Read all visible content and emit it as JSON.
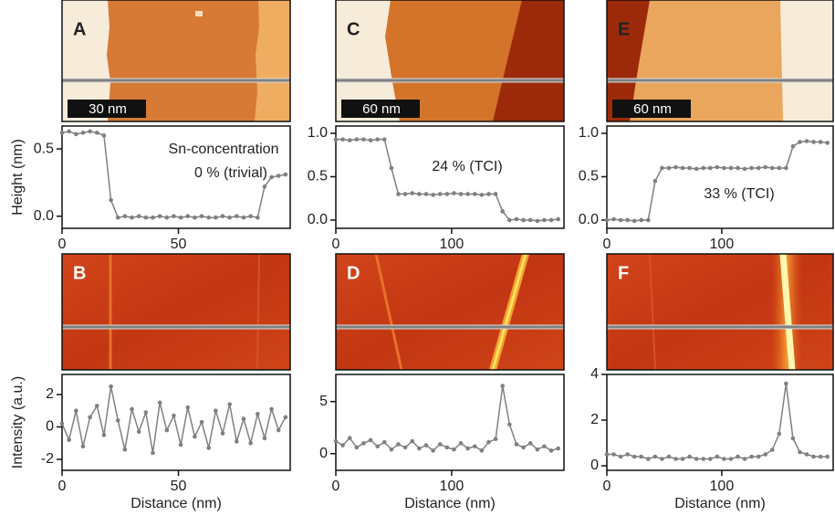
{
  "images": [
    {
      "label": "A",
      "scale_bar": "30 nm"
    },
    {
      "label": "C",
      "scale_bar": "60 nm"
    },
    {
      "label": "E",
      "scale_bar": "60 nm"
    },
    {
      "label": "B"
    },
    {
      "label": "D"
    },
    {
      "label": "F"
    }
  ],
  "chart_data": [
    {
      "type": "line",
      "ylabel": "Height (nm)",
      "annotations": [
        "Sn-concentration",
        "0 % (trivial)"
      ],
      "color": "#808080",
      "x": [
        0,
        3,
        6,
        9,
        12,
        15,
        18,
        21,
        24,
        27,
        30,
        33,
        36,
        39,
        42,
        45,
        48,
        51,
        54,
        57,
        60,
        63,
        66,
        69,
        72,
        75,
        78,
        81,
        84,
        87,
        90,
        93,
        96
      ],
      "values": [
        0.62,
        0.63,
        0.61,
        0.62,
        0.63,
        0.62,
        0.6,
        0.12,
        -0.01,
        0.0,
        -0.01,
        0.0,
        -0.01,
        -0.01,
        0.0,
        -0.01,
        0.0,
        -0.01,
        0.0,
        -0.01,
        0.0,
        -0.01,
        -0.01,
        0.0,
        -0.01,
        0.0,
        -0.01,
        0.0,
        -0.01,
        0.22,
        0.29,
        0.3,
        0.31
      ],
      "xlim": [
        0,
        98
      ],
      "ylim": [
        -0.09,
        0.67
      ],
      "xticks": [
        0,
        50
      ],
      "yticks": [
        {
          "value": 0,
          "label": "0.0"
        },
        {
          "value": 0.5,
          "label": "0.5"
        }
      ]
    },
    {
      "type": "line",
      "annotations": [
        "24 % (TCI)"
      ],
      "color": "#808080",
      "x": [
        0,
        6,
        12,
        18,
        24,
        30,
        36,
        42,
        48,
        54,
        60,
        66,
        72,
        78,
        84,
        90,
        96,
        102,
        108,
        114,
        120,
        126,
        132,
        138,
        144,
        150,
        156,
        162,
        168,
        174,
        180,
        186,
        192
      ],
      "values": [
        0.93,
        0.93,
        0.92,
        0.93,
        0.93,
        0.92,
        0.93,
        0.93,
        0.6,
        0.3,
        0.3,
        0.31,
        0.3,
        0.3,
        0.29,
        0.3,
        0.3,
        0.31,
        0.3,
        0.3,
        0.3,
        0.29,
        0.3,
        0.3,
        0.1,
        0.0,
        0.01,
        0.0,
        0.0,
        -0.01,
        0.0,
        0.0,
        0.01
      ],
      "xlim": [
        0,
        197
      ],
      "ylim": [
        -0.095,
        1.084
      ],
      "xticks": [
        0,
        100
      ],
      "yticks": [
        {
          "value": 0,
          "label": "0.0"
        },
        {
          "value": 0.5,
          "label": "0.5"
        },
        {
          "value": 1,
          "label": "1.0"
        }
      ]
    },
    {
      "type": "line",
      "annotations": [
        "33 % (TCI)"
      ],
      "color": "#808080",
      "x": [
        0,
        6,
        12,
        18,
        24,
        30,
        36,
        42,
        48,
        54,
        60,
        66,
        72,
        78,
        84,
        90,
        96,
        102,
        108,
        114,
        120,
        126,
        132,
        138,
        144,
        150,
        156,
        162,
        168,
        174,
        180,
        186,
        192
      ],
      "values": [
        0.0,
        0.01,
        0.0,
        0.0,
        -0.01,
        0.0,
        0.0,
        0.45,
        0.6,
        0.6,
        0.61,
        0.6,
        0.6,
        0.59,
        0.6,
        0.6,
        0.61,
        0.6,
        0.6,
        0.6,
        0.59,
        0.6,
        0.6,
        0.61,
        0.6,
        0.6,
        0.6,
        0.85,
        0.9,
        0.91,
        0.9,
        0.9,
        0.89
      ],
      "xlim": [
        0,
        197
      ],
      "ylim": [
        -0.095,
        1.084
      ],
      "xticks": [
        0,
        100
      ],
      "yticks": [
        {
          "value": 0,
          "label": "0.0"
        },
        {
          "value": 0.5,
          "label": "0.5"
        },
        {
          "value": 1,
          "label": "1.0"
        }
      ]
    },
    {
      "type": "line",
      "ylabel": "Intensity (a.u.)",
      "xlabel": "Distance (nm)",
      "color": "#808080",
      "x": [
        0,
        3,
        6,
        9,
        12,
        15,
        18,
        21,
        24,
        27,
        30,
        33,
        36,
        39,
        42,
        45,
        48,
        51,
        54,
        57,
        60,
        63,
        66,
        69,
        72,
        75,
        78,
        81,
        84,
        87,
        90,
        93,
        96
      ],
      "values": [
        0.2,
        -0.8,
        1.0,
        -1.2,
        0.6,
        1.3,
        -0.5,
        2.5,
        0.4,
        -1.4,
        1.1,
        -0.3,
        0.9,
        -1.6,
        1.5,
        -0.2,
        0.7,
        -1.1,
        1.2,
        -0.6,
        0.3,
        -1.3,
        1.0,
        -0.4,
        1.4,
        -0.9,
        0.5,
        -1.0,
        0.8,
        -0.7,
        1.1,
        -0.2,
        0.6
      ],
      "xlim": [
        0,
        98
      ],
      "ylim": [
        -2.68,
        3.24
      ],
      "xticks": [
        0,
        50
      ],
      "yticks": [
        -2,
        0,
        2
      ]
    },
    {
      "type": "line",
      "xlabel": "Distance (nm)",
      "color": "#808080",
      "x": [
        0,
        6,
        12,
        18,
        24,
        30,
        36,
        42,
        48,
        54,
        60,
        66,
        72,
        78,
        84,
        90,
        96,
        102,
        108,
        114,
        120,
        126,
        132,
        138,
        144,
        150,
        156,
        162,
        168,
        174,
        180,
        186,
        192
      ],
      "values": [
        1.2,
        0.8,
        1.5,
        0.6,
        1.0,
        1.3,
        0.7,
        1.1,
        0.4,
        0.9,
        0.6,
        1.2,
        0.5,
        0.8,
        0.3,
        0.9,
        0.6,
        0.4,
        1.0,
        0.5,
        0.7,
        0.3,
        1.1,
        1.4,
        6.5,
        2.8,
        0.9,
        0.6,
        1.0,
        0.4,
        0.7,
        0.3,
        0.5
      ],
      "xlim": [
        0,
        197
      ],
      "ylim": [
        -1.6,
        7.6
      ],
      "xticks": [
        0,
        100
      ],
      "yticks": [
        0,
        5
      ]
    },
    {
      "type": "line",
      "xlabel": "Distance (nm)",
      "color": "#808080",
      "x": [
        0,
        6,
        12,
        18,
        24,
        30,
        36,
        42,
        48,
        54,
        60,
        66,
        72,
        78,
        84,
        90,
        96,
        102,
        108,
        114,
        120,
        126,
        132,
        138,
        144,
        150,
        156,
        162,
        168,
        174,
        180,
        186,
        192
      ],
      "values": [
        0.5,
        0.5,
        0.4,
        0.5,
        0.4,
        0.4,
        0.3,
        0.4,
        0.3,
        0.4,
        0.3,
        0.3,
        0.4,
        0.3,
        0.3,
        0.3,
        0.4,
        0.3,
        0.3,
        0.4,
        0.3,
        0.4,
        0.4,
        0.5,
        0.7,
        1.4,
        3.6,
        1.2,
        0.6,
        0.5,
        0.4,
        0.4,
        0.4
      ],
      "xlim": [
        0,
        197
      ],
      "ylim": [
        -0.2,
        4
      ],
      "xticks": [
        0,
        100
      ],
      "yticks": [
        0,
        2,
        4
      ]
    }
  ]
}
